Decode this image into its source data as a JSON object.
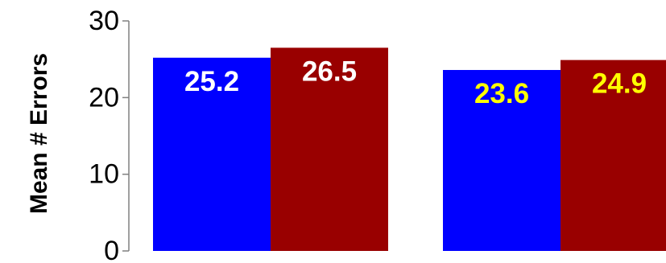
{
  "chart_data": {
    "type": "bar",
    "title": "",
    "xlabel": "",
    "ylabel": "Mean # Errors",
    "ylim": [
      0,
      30
    ],
    "yticks": [
      0,
      10,
      20,
      30
    ],
    "categories": [
      "",
      ""
    ],
    "series": [
      {
        "color": "#0000ff",
        "values": [
          25.2,
          23.6
        ]
      },
      {
        "color": "#990000",
        "values": [
          26.5,
          24.9
        ]
      }
    ],
    "data_label_colors": [
      [
        "#ffffff",
        "#ffffff"
      ],
      [
        "#ffff00",
        "#ffff00"
      ]
    ],
    "grid": false,
    "legend": "none"
  }
}
